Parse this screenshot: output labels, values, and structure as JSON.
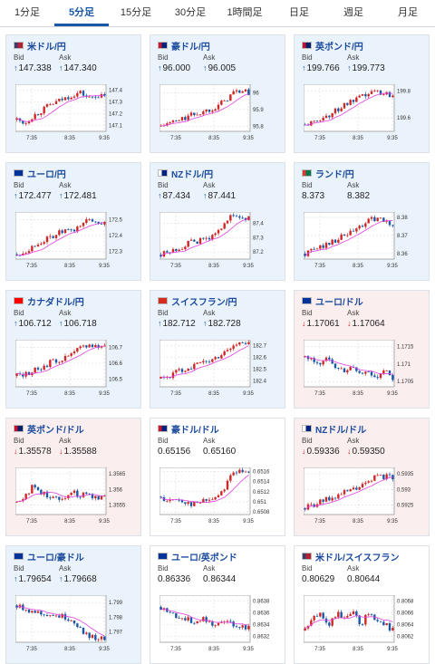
{
  "tabs": [
    {
      "label": "1分足",
      "active": false
    },
    {
      "label": "5分足",
      "active": true
    },
    {
      "label": "15分足",
      "active": false
    },
    {
      "label": "30分足",
      "active": false
    },
    {
      "label": "1時間足",
      "active": false
    },
    {
      "label": "日足",
      "active": false
    },
    {
      "label": "週足",
      "active": false
    },
    {
      "label": "月足",
      "active": false
    }
  ],
  "bid_label": "Bid",
  "ask_label": "Ask",
  "colors": {
    "up": "#1a57a6",
    "down": "#d02626",
    "ma": "#e040e0"
  },
  "cards": [
    {
      "name": "米ドル/円",
      "flag": "us",
      "bid": "147.338",
      "ask": "147.340",
      "dir": "up",
      "bg": "up",
      "bidArrow": "up",
      "askArrow": "up",
      "xticks": [
        "7:35",
        "8:35",
        "9:35"
      ],
      "yticks": [
        "147.4",
        "147.3",
        "147.2",
        "147.1"
      ],
      "chart_data": {
        "type": "candlestick",
        "ylim": [
          147.05,
          147.45
        ],
        "trend": [
          147.15,
          147.12,
          147.18,
          147.22,
          147.27,
          147.3,
          147.33,
          147.36,
          147.38,
          147.33,
          147.36,
          147.34
        ]
      }
    },
    {
      "name": "豪ドル/円",
      "flag": "au",
      "bid": "96.000",
      "ask": "96.005",
      "dir": "up",
      "bg": "up",
      "bidArrow": "up",
      "askArrow": "up",
      "xticks": [
        "7:35",
        "8:35",
        "9:35"
      ],
      "yticks": [
        "96",
        "95.9",
        "95.8"
      ],
      "chart_data": {
        "type": "candlestick",
        "ylim": [
          95.77,
          96.05
        ],
        "trend": [
          95.8,
          95.82,
          95.83,
          95.85,
          95.87,
          95.88,
          95.9,
          95.92,
          95.95,
          96.0,
          96.01,
          96.0
        ]
      }
    },
    {
      "name": "英ポンド/円",
      "flag": "gb",
      "bid": "199.766",
      "ask": "199.773",
      "dir": "up",
      "bg": "up",
      "bidArrow": "up",
      "askArrow": "up",
      "xticks": [
        "7:35",
        "8:35",
        "9:35"
      ],
      "yticks": [
        "199.8",
        "199.6"
      ],
      "chart_data": {
        "type": "candlestick",
        "ylim": [
          199.5,
          199.85
        ],
        "trend": [
          199.55,
          199.56,
          199.6,
          199.62,
          199.66,
          199.7,
          199.72,
          199.75,
          199.78,
          199.8,
          199.78,
          199.77
        ]
      }
    },
    {
      "name": "ユーロ/円",
      "flag": "eu",
      "bid": "172.477",
      "ask": "172.481",
      "dir": "up",
      "bg": "up",
      "bidArrow": "up",
      "askArrow": "up",
      "xticks": [
        "7:35",
        "8:35",
        "9:35"
      ],
      "yticks": [
        "172.5",
        "172.4",
        "172.3"
      ],
      "chart_data": {
        "type": "candlestick",
        "ylim": [
          172.25,
          172.55
        ],
        "trend": [
          172.28,
          172.3,
          172.33,
          172.36,
          172.38,
          172.41,
          172.43,
          172.42,
          172.47,
          172.5,
          172.49,
          172.48
        ]
      }
    },
    {
      "name": "NZドル/円",
      "flag": "nz",
      "bid": "87.434",
      "ask": "87.441",
      "dir": "up",
      "bg": "up",
      "bidArrow": "up",
      "askArrow": "up",
      "xticks": [
        "7:35",
        "8:35",
        "9:35"
      ],
      "yticks": [
        "87.4",
        "87.3",
        "87.2"
      ],
      "chart_data": {
        "type": "candlestick",
        "ylim": [
          87.15,
          87.48
        ],
        "trend": [
          87.18,
          87.2,
          87.22,
          87.25,
          87.27,
          87.28,
          87.3,
          87.32,
          87.42,
          87.45,
          87.44,
          87.43
        ]
      }
    },
    {
      "name": "ランド/円",
      "flag": "za",
      "bid": "8.373",
      "ask": "8.382",
      "dir": "flat",
      "bg": "up",
      "bidArrow": "",
      "askArrow": "",
      "xticks": [
        "7:35",
        "8:35",
        "9:35"
      ],
      "yticks": [
        "8.38",
        "8.37",
        "8.36"
      ],
      "chart_data": {
        "type": "candlestick",
        "ylim": [
          8.357,
          8.383
        ],
        "trend": [
          8.36,
          8.362,
          8.364,
          8.366,
          8.368,
          8.37,
          8.372,
          8.375,
          8.378,
          8.38,
          8.377,
          8.376
        ]
      }
    },
    {
      "name": "カナダドル/円",
      "flag": "ca",
      "bid": "106.712",
      "ask": "106.718",
      "dir": "up",
      "bg": "up",
      "bidArrow": "up",
      "askArrow": "up",
      "xticks": [
        "7:35",
        "8:35",
        "9:35"
      ],
      "yticks": [
        "106.7",
        "106.6",
        "106.5"
      ],
      "chart_data": {
        "type": "candlestick",
        "ylim": [
          106.45,
          106.75
        ],
        "trend": [
          106.52,
          106.53,
          106.55,
          106.57,
          106.6,
          106.62,
          106.63,
          106.66,
          106.7,
          106.72,
          106.71,
          106.71
        ]
      }
    },
    {
      "name": "スイスフラン/円",
      "flag": "ch",
      "bid": "182.712",
      "ask": "182.728",
      "dir": "up",
      "bg": "up",
      "bidArrow": "up",
      "askArrow": "up",
      "xticks": [
        "7:35",
        "8:35",
        "9:35"
      ],
      "yticks": [
        "182.7",
        "182.6",
        "182.5",
        "182.4"
      ],
      "chart_data": {
        "type": "candlestick",
        "ylim": [
          182.35,
          182.75
        ],
        "trend": [
          182.42,
          182.44,
          182.48,
          182.5,
          182.53,
          182.55,
          182.57,
          182.6,
          182.65,
          182.7,
          182.72,
          182.71
        ]
      }
    },
    {
      "name": "ユーロ/ドル",
      "flag": "eu",
      "bid": "1.17061",
      "ask": "1.17064",
      "dir": "down",
      "bg": "down",
      "bidArrow": "dn",
      "askArrow": "dn",
      "xticks": [
        "7:35",
        "8:35",
        "9:35"
      ],
      "yticks": [
        "1.1715",
        "1.171",
        "1.1705"
      ],
      "chart_data": {
        "type": "candlestick",
        "ylim": [
          1.17035,
          1.1717
        ],
        "trend": [
          1.1712,
          1.1711,
          1.171,
          1.1712,
          1.1709,
          1.1708,
          1.1709,
          1.1707,
          1.1708,
          1.1706,
          1.1708,
          1.1706
        ]
      }
    },
    {
      "name": "英ポンド/ドル",
      "flag": "gb",
      "bid": "1.35578",
      "ask": "1.35588",
      "dir": "down",
      "bg": "down",
      "bidArrow": "dn",
      "askArrow": "dn",
      "xticks": [
        "7:35",
        "8:35",
        "9:35"
      ],
      "yticks": [
        "1.3565",
        "1.356",
        "1.3555"
      ],
      "chart_data": {
        "type": "candlestick",
        "ylim": [
          1.3552,
          1.3567
        ],
        "trend": [
          1.3556,
          1.3558,
          1.3561,
          1.3559,
          1.3558,
          1.3557,
          1.3558,
          1.3559,
          1.3558,
          1.3559,
          1.3557,
          1.3558
        ]
      }
    },
    {
      "name": "豪ドル/ドル",
      "flag": "au",
      "bid": "0.65156",
      "ask": "0.65160",
      "dir": "flat",
      "bg": "flat",
      "bidArrow": "",
      "askArrow": "",
      "xticks": [
        "7:35",
        "8:35",
        "9:35"
      ],
      "yticks": [
        "0.6516",
        "0.6514",
        "0.6512",
        "0.651",
        "0.6508"
      ],
      "chart_data": {
        "type": "candlestick",
        "ylim": [
          0.65075,
          0.65168
        ],
        "trend": [
          0.6511,
          0.651,
          0.65105,
          0.651,
          0.65095,
          0.651,
          0.65105,
          0.6511,
          0.6513,
          0.6516,
          0.65158,
          0.65156
        ]
      }
    },
    {
      "name": "NZドル/ドル",
      "flag": "nz",
      "bid": "0.59336",
      "ask": "0.59350",
      "dir": "down",
      "bg": "down",
      "bidArrow": "dn",
      "askArrow": "dn",
      "xticks": [
        "7:35",
        "8:35",
        "9:35"
      ],
      "yticks": [
        "0.5935",
        "0.593",
        "0.5925"
      ],
      "chart_data": {
        "type": "candlestick",
        "ylim": [
          0.5922,
          0.5937
        ],
        "trend": [
          0.5924,
          0.5925,
          0.5926,
          0.5927,
          0.5928,
          0.5929,
          0.593,
          0.5931,
          0.5932,
          0.5935,
          0.5934,
          0.5934
        ]
      }
    },
    {
      "name": "ユーロ/豪ドル",
      "flag": "eu",
      "bid": "1.79654",
      "ask": "1.79668",
      "dir": "up",
      "bg": "up",
      "bidArrow": "up",
      "askArrow": "up",
      "xticks": [
        "7:35",
        "8:35",
        "9:35"
      ],
      "yticks": [
        "1.799",
        "1.798",
        "1.797"
      ],
      "chart_data": {
        "type": "candlestick",
        "ylim": [
          1.7963,
          1.7995
        ],
        "trend": [
          1.7988,
          1.7986,
          1.7984,
          1.7983,
          1.7982,
          1.7981,
          1.798,
          1.7978,
          1.7972,
          1.7967,
          1.7966,
          1.7965
        ]
      }
    },
    {
      "name": "ユーロ/英ポンド",
      "flag": "eu",
      "bid": "0.86336",
      "ask": "0.86344",
      "dir": "flat",
      "bg": "flat",
      "bidArrow": "",
      "askArrow": "",
      "xticks": [
        "7:35",
        "8:35",
        "9:35"
      ],
      "yticks": [
        "0.8638",
        "0.8636",
        "0.8634",
        "0.8632"
      ],
      "chart_data": {
        "type": "candlestick",
        "ylim": [
          0.8631,
          0.8639
        ],
        "trend": [
          0.8637,
          0.8636,
          0.86355,
          0.8635,
          0.86345,
          0.8635,
          0.86345,
          0.8634,
          0.86345,
          0.8634,
          0.86338,
          0.86336
        ]
      }
    },
    {
      "name": "米ドル/スイスフラン",
      "flag": "us",
      "bid": "0.80629",
      "ask": "0.80644",
      "dir": "flat",
      "bg": "flat",
      "bidArrow": "",
      "askArrow": "",
      "xticks": [
        "7:35",
        "8:35",
        "9:35"
      ],
      "yticks": [
        "0.8068",
        "0.8066",
        "0.8064",
        "0.8062"
      ],
      "chart_data": {
        "type": "candlestick",
        "ylim": [
          0.8061,
          0.8069
        ],
        "trend": [
          0.8063,
          0.8065,
          0.8066,
          0.8064,
          0.8066,
          0.8065,
          0.8066,
          0.8064,
          0.8066,
          0.8065,
          0.8064,
          0.8063
        ]
      }
    }
  ]
}
